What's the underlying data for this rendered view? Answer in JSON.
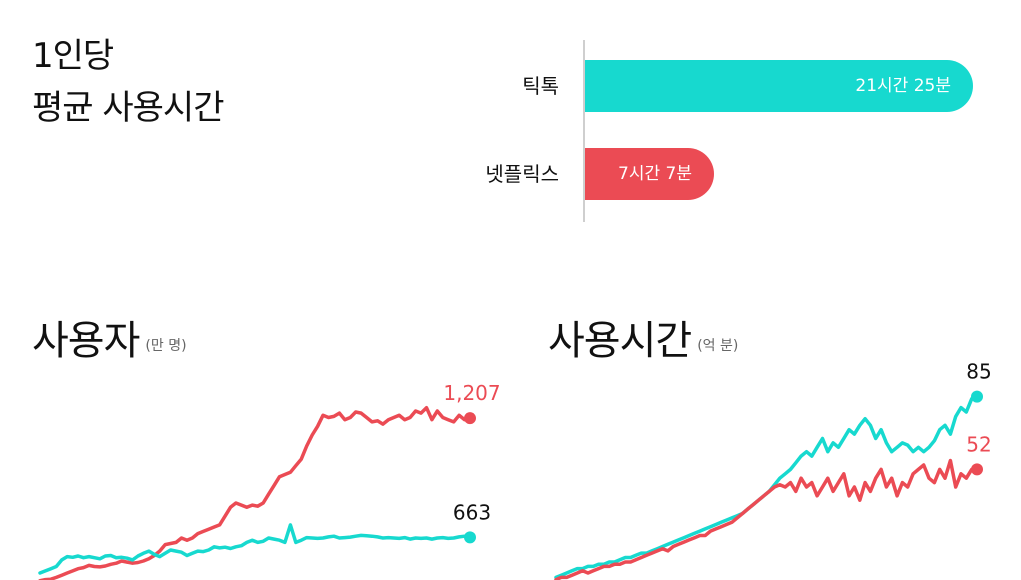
{
  "colors": {
    "tiktok": "#17d9cf",
    "netflix": "#eb4b54",
    "axis": "#cfcfcf"
  },
  "header": {
    "title_line1": "1인당",
    "title_line2": "평균 사용시간"
  },
  "bar_chart": {
    "type": "bar",
    "orientation": "horizontal",
    "max_minutes": 1390,
    "items": [
      {
        "label": "틱톡",
        "value_label": "21시간 25분",
        "minutes": 1285,
        "color": "#17d9cf"
      },
      {
        "label": "넷플릭스",
        "value_label": "7시간 7분",
        "minutes": 427,
        "color": "#eb4b54"
      }
    ]
  },
  "chart_data": [
    {
      "type": "line",
      "title": "사용자",
      "unit": "(만 명)",
      "ylim": [
        450,
        1290
      ],
      "series": [
        {
          "color": "#eb4b54",
          "end_label": "1,207",
          "values": [
            465,
            470,
            472,
            480,
            490,
            500,
            510,
            520,
            525,
            535,
            530,
            528,
            532,
            540,
            545,
            555,
            550,
            545,
            548,
            555,
            565,
            580,
            600,
            630,
            635,
            640,
            660,
            650,
            660,
            680,
            690,
            700,
            710,
            720,
            760,
            800,
            820,
            810,
            800,
            810,
            805,
            820,
            860,
            900,
            940,
            950,
            960,
            990,
            1020,
            1080,
            1130,
            1170,
            1220,
            1210,
            1215,
            1230,
            1200,
            1210,
            1235,
            1230,
            1210,
            1190,
            1195,
            1180,
            1200,
            1210,
            1220,
            1200,
            1210,
            1240,
            1230,
            1255,
            1200,
            1240,
            1210,
            1200,
            1190,
            1220,
            1200,
            1207
          ]
        },
        {
          "color": "#17d9cf",
          "end_label": "663",
          "values": [
            500,
            510,
            520,
            530,
            560,
            575,
            572,
            578,
            570,
            575,
            570,
            565,
            578,
            580,
            570,
            572,
            568,
            560,
            578,
            590,
            600,
            585,
            575,
            590,
            605,
            600,
            595,
            580,
            590,
            600,
            598,
            605,
            620,
            615,
            618,
            612,
            620,
            625,
            640,
            650,
            640,
            645,
            660,
            655,
            650,
            640,
            720,
            640,
            650,
            662,
            660,
            658,
            660,
            665,
            668,
            660,
            662,
            664,
            668,
            672,
            670,
            668,
            665,
            660,
            662,
            660,
            658,
            662,
            655,
            660,
            658,
            660,
            655,
            660,
            662,
            658,
            660,
            665,
            668,
            663
          ]
        }
      ]
    },
    {
      "type": "line",
      "title": "사용시간",
      "unit": "(억 분)",
      "ylim": [
        0,
        88
      ],
      "series": [
        {
          "color": "#17d9cf",
          "end_label": "85",
          "values": [
            3,
            4,
            5,
            6,
            7,
            7,
            8,
            8,
            9,
            9,
            10,
            10,
            11,
            12,
            12,
            13,
            14,
            14,
            15,
            16,
            17,
            18,
            19,
            20,
            21,
            22,
            23,
            24,
            25,
            26,
            27,
            28,
            29,
            30,
            31,
            32,
            34,
            36,
            38,
            40,
            42,
            45,
            48,
            50,
            52,
            55,
            58,
            60,
            58,
            62,
            66,
            60,
            64,
            62,
            66,
            70,
            68,
            72,
            75,
            72,
            66,
            70,
            64,
            60,
            62,
            64,
            63,
            60,
            62,
            60,
            62,
            65,
            70,
            72,
            68,
            76,
            80,
            78,
            84,
            85
          ]
        },
        {
          "color": "#eb4b54",
          "end_label": "52",
          "values": [
            2,
            3,
            3,
            4,
            5,
            6,
            5,
            6,
            7,
            8,
            8,
            9,
            9,
            10,
            10,
            11,
            12,
            13,
            14,
            15,
            16,
            15,
            17,
            18,
            19,
            20,
            21,
            22,
            22,
            24,
            25,
            26,
            27,
            28,
            30,
            32,
            34,
            36,
            38,
            40,
            42,
            44,
            45,
            44,
            46,
            42,
            48,
            44,
            46,
            40,
            44,
            48,
            42,
            46,
            50,
            40,
            44,
            38,
            46,
            42,
            48,
            52,
            44,
            48,
            40,
            46,
            44,
            50,
            52,
            54,
            48,
            46,
            52,
            48,
            56,
            44,
            50,
            48,
            52,
            52
          ]
        }
      ]
    }
  ]
}
